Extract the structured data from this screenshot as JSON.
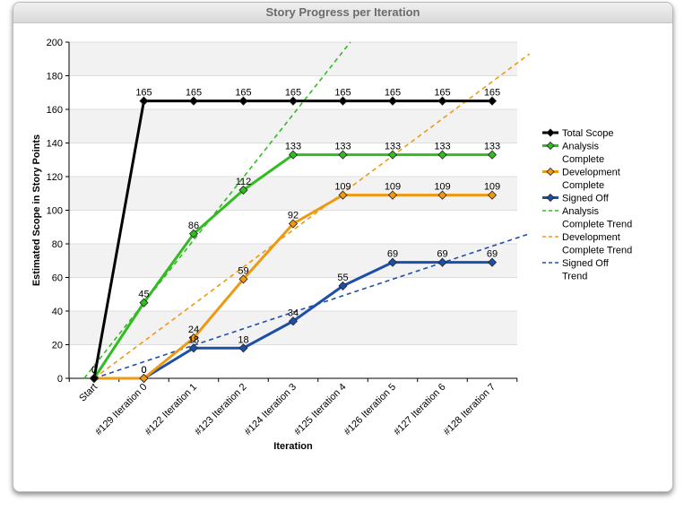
{
  "panel": {
    "title": "Story Progress per Iteration"
  },
  "chart_data": {
    "type": "line",
    "xlabel": "Iteration",
    "ylabel": "Estimated Scope in Story Points",
    "ylim": [
      0,
      200
    ],
    "yticks": [
      0,
      20,
      40,
      60,
      80,
      100,
      120,
      140,
      160,
      180,
      200
    ],
    "categories": [
      "Start",
      "#129 Iteration 0",
      "#122 Iteration 1",
      "#123 Iteration 2",
      "#124 Iteration 3",
      "#125 Iteration 4",
      "#126 Iteration 5",
      "#127 Iteration 6",
      "#128 Iteration 7"
    ],
    "grid": "horizontal alternating bands",
    "legend_position": "right",
    "series": [
      {
        "name": "Total Scope",
        "color": "#000000",
        "style": "solid",
        "marker": "diamond",
        "values": [
          0,
          165,
          165,
          165,
          165,
          165,
          165,
          165,
          165
        ],
        "labels": [
          "0",
          "165",
          "165",
          "165",
          "165",
          "165",
          "165",
          "165",
          "165"
        ]
      },
      {
        "name": "Analysis Complete",
        "color": "#33bb22",
        "style": "solid",
        "marker": "diamond",
        "values": [
          0,
          45,
          86,
          112,
          133,
          133,
          133,
          133,
          133
        ],
        "labels": [
          "0",
          "45",
          "86",
          "112",
          "133",
          "133",
          "133",
          "133",
          "133"
        ]
      },
      {
        "name": "Development Complete",
        "color": "#ee9911",
        "style": "solid",
        "marker": "diamond",
        "values": [
          0,
          0,
          24,
          59,
          92,
          109,
          109,
          109,
          109
        ],
        "labels": [
          "0",
          "0",
          "24",
          "59",
          "92",
          "109",
          "109",
          "109",
          "109"
        ]
      },
      {
        "name": "Signed Off",
        "color": "#1e4fa8",
        "style": "solid",
        "marker": "diamond",
        "values": [
          0,
          0,
          18,
          18,
          34,
          55,
          69,
          69,
          69
        ],
        "labels": [
          "0",
          "0",
          "18",
          "18",
          "34",
          "55",
          "69",
          "69",
          "69"
        ]
      },
      {
        "name": "Analysis Complete Trend",
        "color": "#33bb22",
        "style": "dashed",
        "marker": "none",
        "trend": {
          "from": [
            -0.2,
            0
          ],
          "to": [
            5.15,
            200
          ]
        }
      },
      {
        "name": "Development Complete Trend",
        "color": "#ee9911",
        "style": "dashed",
        "marker": "none",
        "trend": {
          "from": [
            0,
            0
          ],
          "to": [
            8.75,
            193
          ]
        }
      },
      {
        "name": "Signed Off Trend",
        "color": "#1e4fa8",
        "style": "dashed",
        "marker": "none",
        "trend": {
          "from": [
            0,
            0
          ],
          "to": [
            8.75,
            86
          ]
        }
      }
    ],
    "legend": [
      {
        "lines": [
          "Total Scope"
        ],
        "color": "#000000",
        "style": "solid",
        "marker": true
      },
      {
        "lines": [
          "Analysis",
          "Complete"
        ],
        "color": "#33bb22",
        "style": "solid",
        "marker": true
      },
      {
        "lines": [
          "Development",
          "Complete"
        ],
        "color": "#ee9911",
        "style": "solid",
        "marker": true
      },
      {
        "lines": [
          "Signed Off"
        ],
        "color": "#1e4fa8",
        "style": "solid",
        "marker": true
      },
      {
        "lines": [
          "Analysis",
          "Complete Trend"
        ],
        "color": "#33bb22",
        "style": "dashed",
        "marker": false
      },
      {
        "lines": [
          "Development",
          "Complete Trend"
        ],
        "color": "#ee9911",
        "style": "dashed",
        "marker": false
      },
      {
        "lines": [
          "Signed Off",
          "Trend"
        ],
        "color": "#1e4fa8",
        "style": "dashed",
        "marker": false
      }
    ]
  }
}
